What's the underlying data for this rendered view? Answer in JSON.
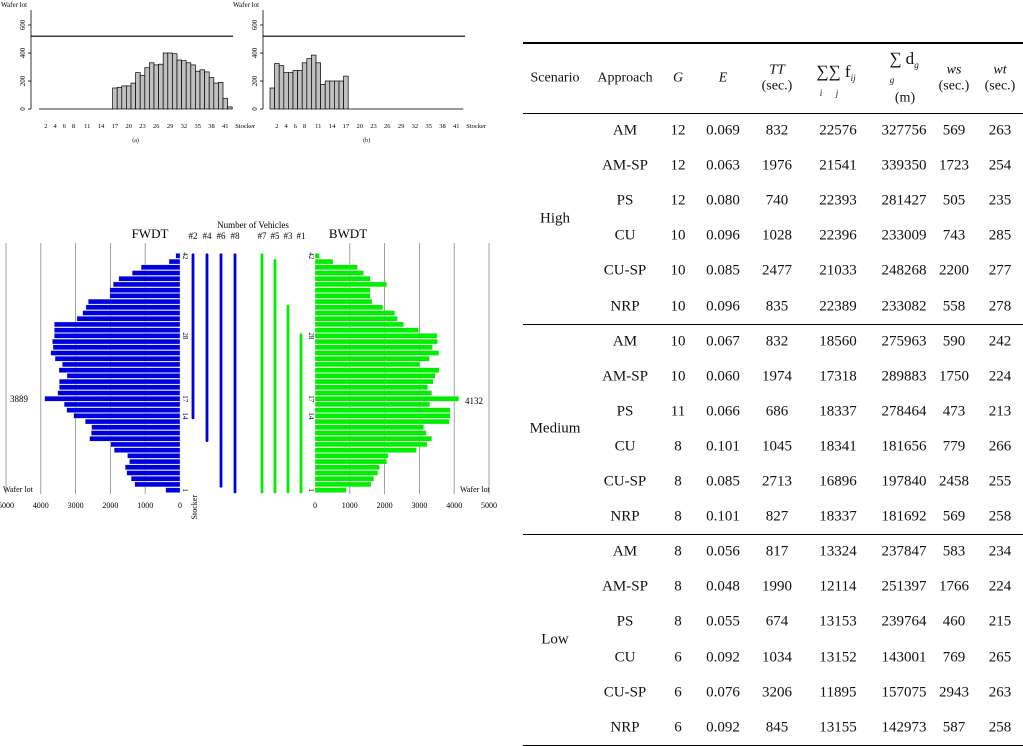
{
  "chart_data": [
    {
      "type": "bar",
      "id": "a",
      "caption": "(a)",
      "ylabel": "Wafer lot",
      "xlabel": "Stocker",
      "ylim": [
        0,
        700
      ],
      "yticks": [
        0,
        200,
        400,
        600
      ],
      "reference_line": 520,
      "xticks": [
        2,
        4,
        6,
        8,
        11,
        14,
        17,
        20,
        23,
        26,
        29,
        32,
        35,
        38,
        41
      ],
      "values": [
        0,
        0,
        0,
        0,
        0,
        0,
        0,
        0,
        0,
        0,
        0,
        0,
        0,
        0,
        0,
        0,
        150,
        155,
        165,
        165,
        185,
        260,
        240,
        295,
        330,
        315,
        320,
        400,
        400,
        395,
        350,
        345,
        330,
        315,
        270,
        280,
        265,
        225,
        185,
        190,
        75,
        15
      ]
    },
    {
      "type": "bar",
      "id": "b",
      "caption": "(b)",
      "ylabel": "Wafer lot",
      "xlabel": "Stocker",
      "ylim": [
        0,
        700
      ],
      "yticks": [
        0,
        200,
        400,
        600
      ],
      "reference_line": 520,
      "xticks": [
        2,
        4,
        6,
        8,
        11,
        14,
        17,
        20,
        23,
        26,
        29,
        32,
        35,
        38,
        41
      ],
      "values": [
        150,
        325,
        310,
        260,
        260,
        275,
        275,
        330,
        360,
        385,
        330,
        175,
        200,
        200,
        200,
        200,
        235,
        0,
        0,
        0,
        0,
        0,
        0,
        0,
        0,
        0,
        0,
        0,
        0,
        0,
        0,
        0,
        0,
        0,
        0,
        0,
        0,
        0,
        0,
        0,
        0,
        0
      ]
    },
    {
      "type": "bar",
      "id": "fwdt-bwdt",
      "orientation": "horizontal",
      "title": "Number of Vehicles",
      "ylabel": "Stocker",
      "xlabel": "Wafer lot",
      "stocker_ticks": [
        1,
        14,
        17,
        28,
        42
      ],
      "xlim": [
        0,
        5000
      ],
      "xticks": [
        0,
        1000,
        2000,
        3000,
        4000,
        5000
      ],
      "series": [
        {
          "name": "FWDT",
          "color": "#0000dd",
          "max_label": "3889",
          "values": [
            411,
            1299,
            1404,
            1528,
            1576,
            1452,
            1509,
            1891,
            1987,
            2598,
            2550,
            2541,
            2722,
            3056,
            3257,
            3330,
            3889,
            3515,
            3467,
            3467,
            3247,
            3477,
            3381,
            3591,
            3715,
            3648,
            3667,
            3610,
            3610,
            3610,
            2961,
            2798,
            2703,
            2636,
            2015,
            2015,
            1920,
            1757,
            1375,
            1117,
            315,
            120
          ]
        },
        {
          "name": "BWDT",
          "color": "#00ee00",
          "max_label": "4132",
          "values": [
            898,
            1610,
            1688,
            1805,
            1854,
            2059,
            2098,
            2917,
            3220,
            3356,
            3200,
            3122,
            3863,
            3883,
            3883,
            3300,
            4132,
            3356,
            3239,
            3395,
            3454,
            3571,
            3015,
            3288,
            3561,
            3376,
            3522,
            3512,
            2976,
            2546,
            2371,
            2293,
            1951,
            1639,
            1590,
            1590,
            2059,
            1590,
            1395,
            1220,
            517,
            127
          ]
        }
      ],
      "vehicles": [
        {
          "label": "#2",
          "side": "FWDT",
          "from": 14,
          "to": 42
        },
        {
          "label": "#4",
          "side": "FWDT",
          "from": 10,
          "to": 42
        },
        {
          "label": "#6",
          "side": "FWDT",
          "from": 2,
          "to": 42
        },
        {
          "label": "#8",
          "side": "FWDT",
          "from": 1,
          "to": 42
        },
        {
          "label": "#7",
          "side": "BWDT",
          "from": 1,
          "to": 42
        },
        {
          "label": "#5",
          "side": "BWDT",
          "from": 1,
          "to": 41
        },
        {
          "label": "#3",
          "side": "BWDT",
          "from": 1,
          "to": 33
        },
        {
          "label": "#1",
          "side": "BWDT",
          "from": 1,
          "to": 28
        }
      ]
    }
  ],
  "table": {
    "headers": {
      "scenario": "Scenario",
      "approach": "Approach",
      "G": "G",
      "E": "E",
      "TT": "TT",
      "TT_unit": "(sec.)",
      "f": "∑∑ f",
      "f_sub_i": "i",
      "f_sub_j": "j",
      "f_ij": "ij",
      "d": "∑ d",
      "d_sub": "g",
      "d_g": "g",
      "d_unit": "(m)",
      "ws": "ws",
      "ws_unit": "(sec.)",
      "wt": "wt",
      "wt_unit": "(sec.)"
    },
    "groups": [
      {
        "scenario": "High",
        "rows": [
          [
            "AM",
            "12",
            "0.069",
            "832",
            "22576",
            "327756",
            "569",
            "263"
          ],
          [
            "AM-SP",
            "12",
            "0.063",
            "1976",
            "21541",
            "339350",
            "1723",
            "254"
          ],
          [
            "PS",
            "12",
            "0.080",
            "740",
            "22393",
            "281427",
            "505",
            "235"
          ],
          [
            "CU",
            "10",
            "0.096",
            "1028",
            "22396",
            "233009",
            "743",
            "285"
          ],
          [
            "CU-SP",
            "10",
            "0.085",
            "2477",
            "21033",
            "248268",
            "2200",
            "277"
          ],
          [
            "NRP",
            "10",
            "0.096",
            "835",
            "22389",
            "233082",
            "558",
            "278"
          ]
        ]
      },
      {
        "scenario": "Medium",
        "rows": [
          [
            "AM",
            "10",
            "0.067",
            "832",
            "18560",
            "275963",
            "590",
            "242"
          ],
          [
            "AM-SP",
            "10",
            "0.060",
            "1974",
            "17318",
            "289883",
            "1750",
            "224"
          ],
          [
            "PS",
            "11",
            "0.066",
            "686",
            "18337",
            "278464",
            "473",
            "213"
          ],
          [
            "CU",
            "8",
            "0.101",
            "1045",
            "18341",
            "181656",
            "779",
            "266"
          ],
          [
            "CU-SP",
            "8",
            "0.085",
            "2713",
            "16896",
            "197840",
            "2458",
            "255"
          ],
          [
            "NRP",
            "8",
            "0.101",
            "827",
            "18337",
            "181692",
            "569",
            "258"
          ]
        ]
      },
      {
        "scenario": "Low",
        "rows": [
          [
            "AM",
            "8",
            "0.056",
            "817",
            "13324",
            "237847",
            "583",
            "234"
          ],
          [
            "AM-SP",
            "8",
            "0.048",
            "1990",
            "12114",
            "251397",
            "1766",
            "224"
          ],
          [
            "PS",
            "8",
            "0.055",
            "674",
            "13153",
            "239764",
            "460",
            "215"
          ],
          [
            "CU",
            "6",
            "0.092",
            "1034",
            "13152",
            "143001",
            "769",
            "265"
          ],
          [
            "CU-SP",
            "6",
            "0.076",
            "3206",
            "11895",
            "157075",
            "2943",
            "263"
          ],
          [
            "NRP",
            "6",
            "0.092",
            "845",
            "13155",
            "142973",
            "587",
            "258"
          ]
        ]
      }
    ]
  }
}
